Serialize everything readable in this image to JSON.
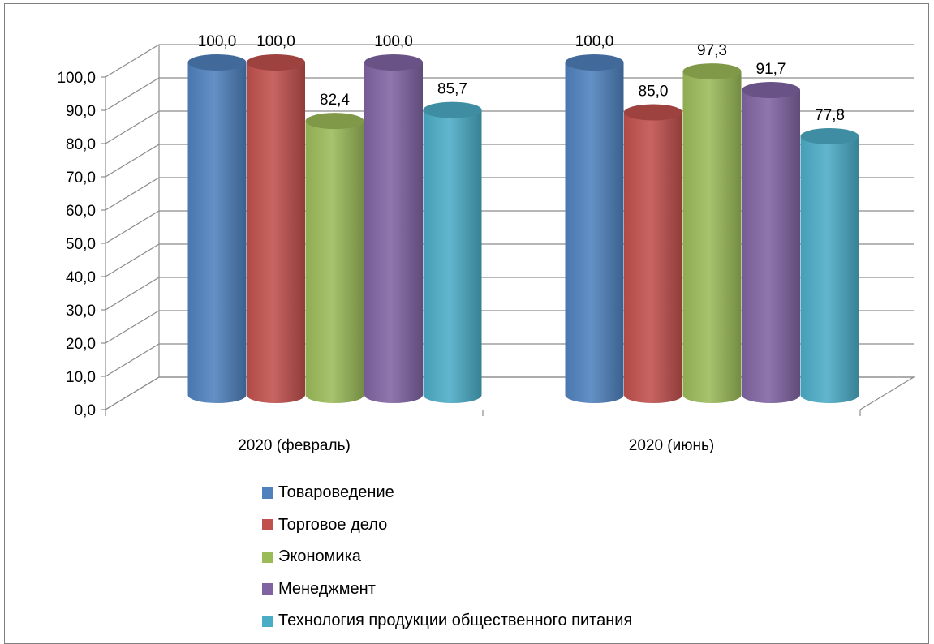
{
  "chart_data": {
    "type": "bar",
    "style": "3d-cylinder",
    "categories": [
      "2020 (февраль)",
      "2020 (июнь)"
    ],
    "series": [
      {
        "name": "Товароведение",
        "values": [
          100.0,
          100.0
        ],
        "labels": [
          "100,0",
          "100,0"
        ],
        "color": "#4f81bd"
      },
      {
        "name": "Торговое дело",
        "values": [
          100.0,
          85.0
        ],
        "labels": [
          "100,0",
          "85,0"
        ],
        "color": "#c0504d"
      },
      {
        "name": "Экономика",
        "values": [
          82.4,
          97.3
        ],
        "labels": [
          "82,4",
          "97,3"
        ],
        "color": "#9bbb59"
      },
      {
        "name": "Менеджмент",
        "values": [
          100.0,
          91.7
        ],
        "labels": [
          "100,0",
          "91,7"
        ],
        "color": "#8064a2"
      },
      {
        "name": "Технология продукции общественного питания",
        "values": [
          85.7,
          77.8
        ],
        "labels": [
          "85,7",
          "77,8"
        ],
        "color": "#4bacc6"
      }
    ],
    "ylim": [
      0,
      100
    ],
    "yticks": [
      "0,0",
      "10,0",
      "20,0",
      "30,0",
      "40,0",
      "50,0",
      "60,0",
      "70,0",
      "80,0",
      "90,0",
      "100,0"
    ],
    "grid": true,
    "legend_position": "bottom",
    "title": "",
    "xlabel": "",
    "ylabel": ""
  }
}
